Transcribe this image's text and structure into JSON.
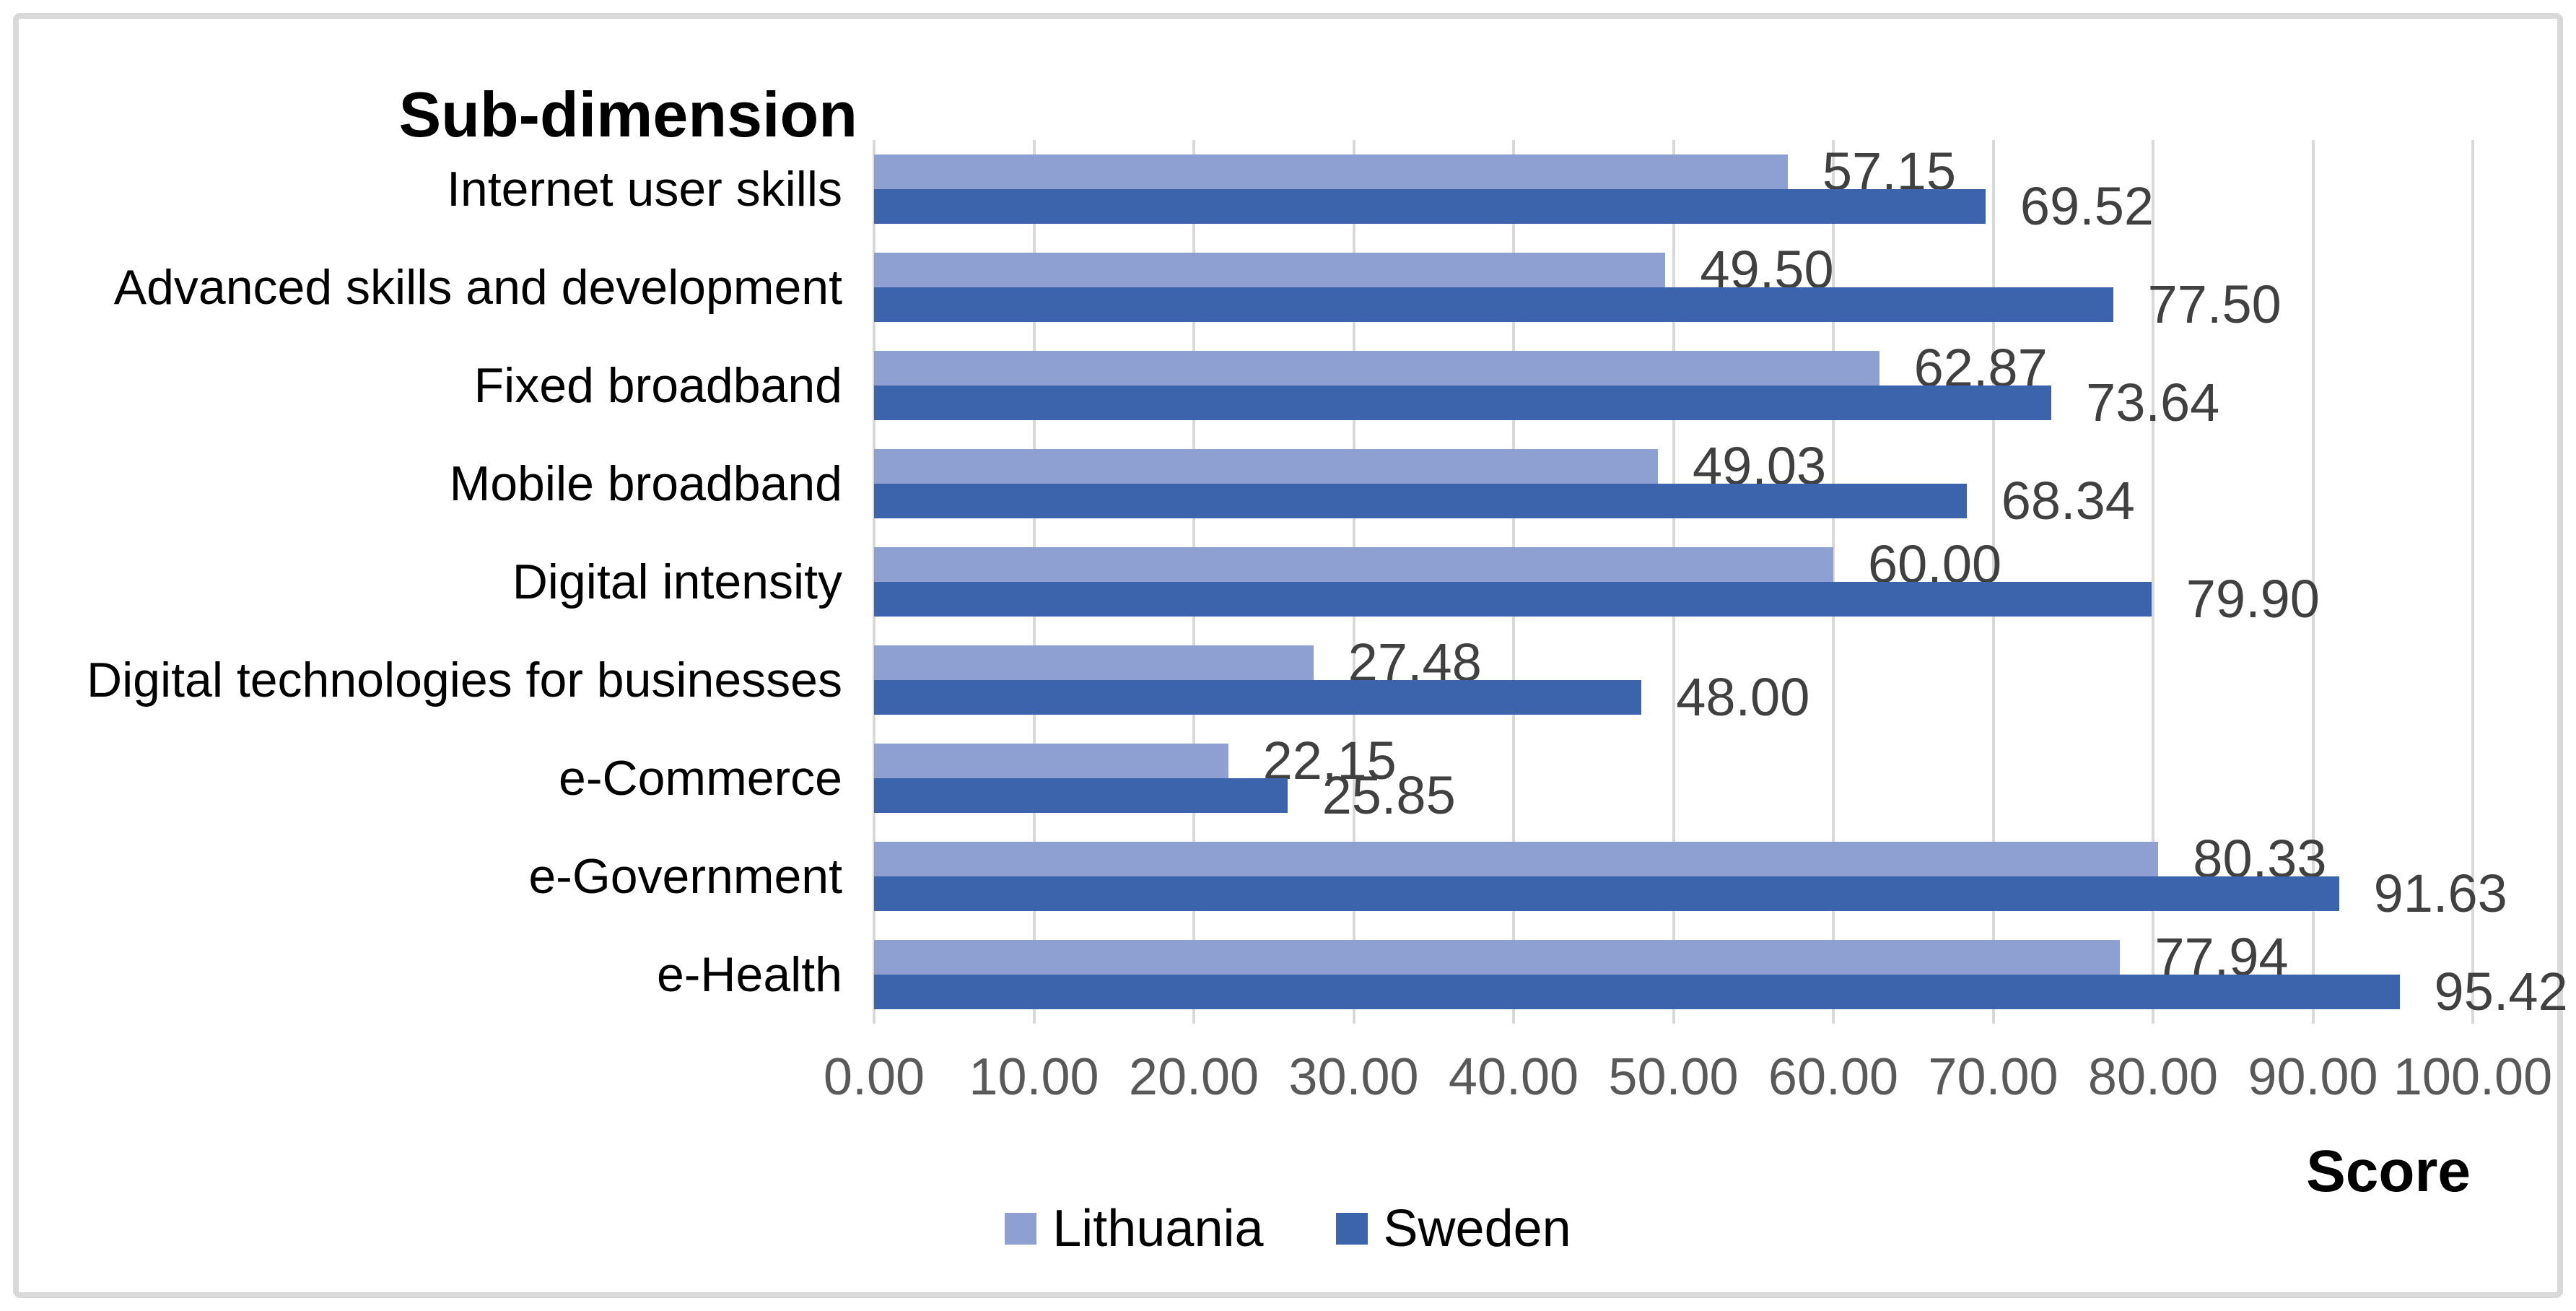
{
  "chart_data": {
    "type": "bar",
    "orientation": "horizontal",
    "title": "Sub-dimension",
    "xlabel": "Score",
    "xlim": [
      0,
      100
    ],
    "xticks": [
      0,
      10,
      20,
      30,
      40,
      50,
      60,
      70,
      80,
      90,
      100
    ],
    "tick_label_format": "two_decimals",
    "grid": "vertical",
    "legend_position": "bottom-center",
    "value_labels": "outside-end",
    "categories": [
      "Internet user skills",
      "Advanced skills and development",
      "Fixed broadband",
      "Mobile broadband",
      "Digital intensity",
      "Digital technologies for businesses",
      "e-Commerce",
      "e-Government",
      "e-Health"
    ],
    "series": [
      {
        "name": "Lithuania",
        "color": "#8EA0D2",
        "values": [
          57.15,
          49.5,
          62.87,
          49.03,
          60.0,
          27.48,
          22.15,
          80.33,
          77.94
        ]
      },
      {
        "name": "Sweden",
        "color": "#3C64AC",
        "values": [
          69.52,
          77.5,
          73.64,
          68.34,
          79.9,
          48.0,
          25.85,
          91.63,
          95.42
        ]
      }
    ]
  },
  "colors": {
    "gridline": "#D9D9D9",
    "tick_text": "#595959",
    "value_text": "#404040",
    "text": "#000000",
    "frame_border": "#D9D9D9",
    "background": "#FFFFFF"
  }
}
